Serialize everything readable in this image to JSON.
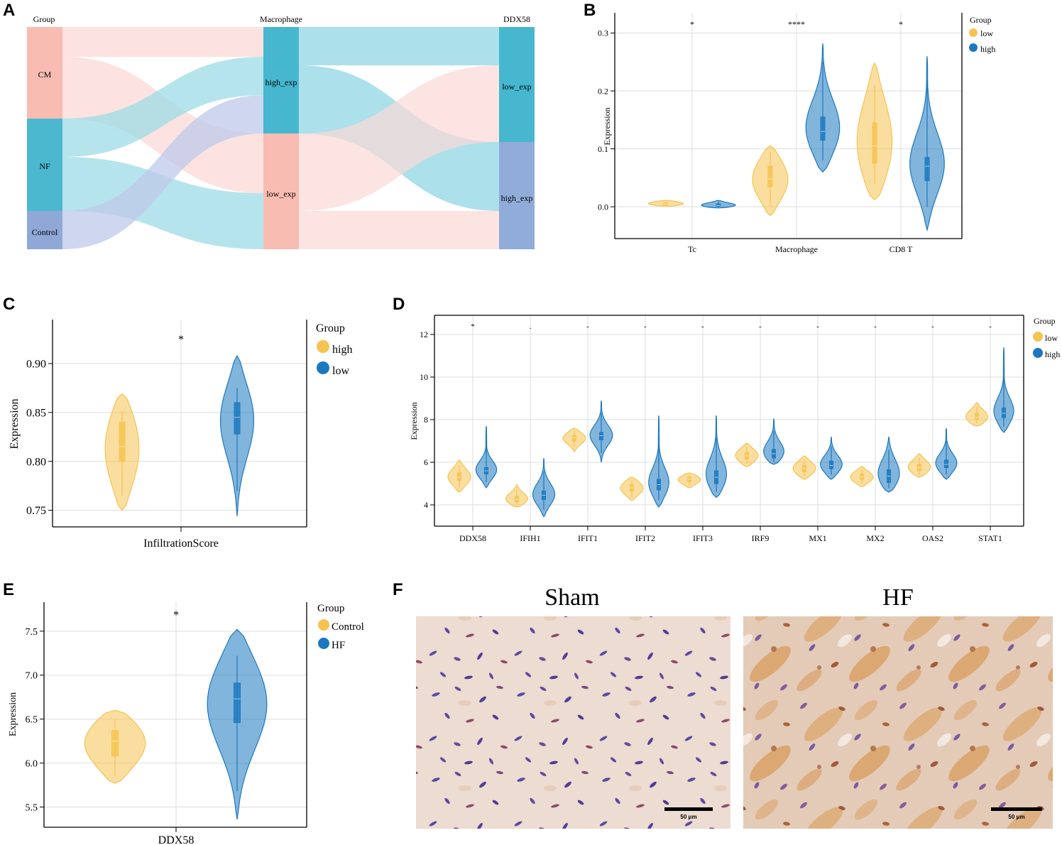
{
  "colors": {
    "low": "#f5c350",
    "high": "#1b78bf",
    "cm": "#f8bcb2",
    "nf": "#4cb8d0",
    "control": "#90a8d6",
    "link_pink": "#fbd8d5",
    "link_cyan": "#9ddbe6",
    "link_lav": "#bdc9ea"
  },
  "panels": {
    "A": {
      "label": "A",
      "headers": [
        "Group",
        "Macrophage",
        "DDX58"
      ],
      "group_nodes": [
        "CM",
        "NF",
        "Control"
      ],
      "macrophage_nodes": [
        "high_exp",
        "low_exp"
      ],
      "ddx58_nodes": [
        "low_exp",
        "high_exp"
      ],
      "flows_group_to_macrophage": [
        {
          "from": "CM",
          "to": "high_exp",
          "value": 17
        },
        {
          "from": "CM",
          "to": "low_exp",
          "value": 25
        },
        {
          "from": "NF",
          "to": "high_exp",
          "value": 16
        },
        {
          "from": "NF",
          "to": "low_exp",
          "value": 25
        },
        {
          "from": "Control",
          "to": "high_exp",
          "value": 16
        },
        {
          "from": "Control",
          "to": "low_exp",
          "value": 0
        }
      ],
      "flows_macrophage_to_ddx58": [
        {
          "from": "high_exp",
          "to": "low_exp",
          "value": 17
        },
        {
          "from": "high_exp",
          "to": "high_exp",
          "value": 32
        },
        {
          "from": "low_exp",
          "to": "low_exp",
          "value": 34
        },
        {
          "from": "low_exp",
          "to": "high_exp",
          "value": 17
        }
      ]
    },
    "B": {
      "label": "B",
      "type": "violin",
      "ylabel": "Expression",
      "ylim": [
        -0.055,
        0.335
      ],
      "yticks": [
        0.0,
        0.1,
        0.2,
        0.3
      ],
      "ytick_labels": [
        "0.0",
        "0.1",
        "0.2",
        "0.3"
      ],
      "categories": [
        "Tc",
        "Macrophage",
        "CD8 T"
      ],
      "significance": [
        "*",
        "****",
        "*"
      ],
      "legend_title": "Group",
      "series": [
        {
          "name": "low",
          "color": "low",
          "values": [
            {
              "min": 0.001,
              "max": 0.011,
              "q1": 0.003,
              "med": 0.005,
              "q3": 0.007,
              "wlo": 0.002,
              "whi": 0.009
            },
            {
              "min": -0.015,
              "max": 0.105,
              "q1": 0.035,
              "med": 0.048,
              "q3": 0.07,
              "wlo": 0.0,
              "whi": 0.095
            },
            {
              "min": 0.012,
              "max": 0.248,
              "q1": 0.075,
              "med": 0.105,
              "q3": 0.145,
              "wlo": 0.04,
              "whi": 0.21
            }
          ]
        },
        {
          "name": "high",
          "color": "high",
          "values": [
            {
              "min": -0.002,
              "max": 0.011,
              "q1": 0.001,
              "med": 0.002,
              "q3": 0.005,
              "wlo": -0.001,
              "whi": 0.009
            },
            {
              "min": 0.06,
              "max": 0.282,
              "q1": 0.115,
              "med": 0.13,
              "q3": 0.155,
              "wlo": 0.08,
              "whi": 0.25
            },
            {
              "min": -0.04,
              "max": 0.26,
              "q1": 0.045,
              "med": 0.07,
              "q3": 0.085,
              "wlo": 0.0,
              "whi": 0.22
            }
          ]
        }
      ]
    },
    "C": {
      "label": "C",
      "type": "violin",
      "ylabel": "Expression",
      "xlabel": "InfiltrationScore",
      "ylim": [
        0.733,
        0.945
      ],
      "yticks": [
        0.75,
        0.8,
        0.85,
        0.9
      ],
      "ytick_labels": [
        "0.75",
        "0.80",
        "0.85",
        "0.90"
      ],
      "significance": "*",
      "legend_title": "Group",
      "series": [
        {
          "name": "high",
          "color": "low",
          "stats": {
            "min": 0.75,
            "max": 0.869,
            "q1": 0.8,
            "med": 0.815,
            "q3": 0.84,
            "wlo": 0.765,
            "whi": 0.852
          }
        },
        {
          "name": "low",
          "color": "high",
          "stats": {
            "min": 0.744,
            "max": 0.908,
            "q1": 0.828,
            "med": 0.845,
            "q3": 0.86,
            "wlo": 0.77,
            "whi": 0.875
          }
        }
      ]
    },
    "D": {
      "label": "D",
      "type": "violin",
      "ylabel": "Expression",
      "ylim": [
        3.0,
        12.9
      ],
      "yticks": [
        4,
        6,
        8,
        10,
        12
      ],
      "ytick_labels": [
        "4",
        "6",
        "8",
        "10",
        "12"
      ],
      "categories": [
        "DDX58",
        "IFIH1",
        "IFIT1",
        "IFIT2",
        "IFIT3",
        "IRF9",
        "MX1",
        "MX2",
        "OAS2",
        "STAT1"
      ],
      "significance": [
        "*",
        ".",
        "-",
        "-",
        "-",
        "-",
        "-",
        "-",
        "-",
        "-"
      ],
      "legend_title": "Group",
      "series": [
        {
          "name": "low",
          "color": "low",
          "values": [
            {
              "min": 4.6,
              "max": 6.1,
              "med": 5.3,
              "q1": 5.15,
              "q3": 5.5
            },
            {
              "min": 3.9,
              "max": 4.95,
              "med": 4.25,
              "q1": 4.15,
              "q3": 4.4
            },
            {
              "min": 6.5,
              "max": 7.6,
              "med": 7.15,
              "q1": 7.0,
              "q3": 7.25
            },
            {
              "min": 4.2,
              "max": 5.3,
              "med": 4.8,
              "q1": 4.65,
              "q3": 4.95
            },
            {
              "min": 4.8,
              "max": 5.5,
              "med": 5.2,
              "q1": 5.1,
              "q3": 5.3
            },
            {
              "min": 5.8,
              "max": 6.9,
              "med": 6.3,
              "q1": 6.15,
              "q3": 6.45
            },
            {
              "min": 5.2,
              "max": 6.3,
              "med": 5.7,
              "q1": 5.55,
              "q3": 5.85
            },
            {
              "min": 4.85,
              "max": 5.8,
              "med": 5.3,
              "q1": 5.2,
              "q3": 5.45
            },
            {
              "min": 5.3,
              "max": 6.4,
              "med": 5.75,
              "q1": 5.6,
              "q3": 5.9
            },
            {
              "min": 7.7,
              "max": 8.8,
              "med": 8.1,
              "q1": 8.0,
              "q3": 8.3
            }
          ]
        },
        {
          "name": "high",
          "color": "high",
          "values": [
            {
              "min": 4.8,
              "max": 7.7,
              "med": 5.6,
              "q1": 5.45,
              "q3": 5.75
            },
            {
              "min": 3.45,
              "max": 6.2,
              "med": 4.45,
              "q1": 4.25,
              "q3": 4.65
            },
            {
              "min": 6.0,
              "max": 8.9,
              "med": 7.25,
              "q1": 7.05,
              "q3": 7.4
            },
            {
              "min": 3.9,
              "max": 8.2,
              "med": 4.95,
              "q1": 4.7,
              "q3": 5.2
            },
            {
              "min": 4.35,
              "max": 8.2,
              "med": 5.3,
              "q1": 5.0,
              "q3": 5.6
            },
            {
              "min": 5.9,
              "max": 8.05,
              "med": 6.4,
              "q1": 6.2,
              "q3": 6.6
            },
            {
              "min": 5.2,
              "max": 7.2,
              "med": 5.85,
              "q1": 5.7,
              "q3": 6.05
            },
            {
              "min": 4.6,
              "max": 7.2,
              "med": 5.35,
              "q1": 5.05,
              "q3": 5.65
            },
            {
              "min": 5.2,
              "max": 7.6,
              "med": 5.9,
              "q1": 5.75,
              "q3": 6.1
            },
            {
              "min": 7.4,
              "max": 11.4,
              "med": 8.3,
              "q1": 8.1,
              "q3": 8.55
            }
          ]
        }
      ]
    },
    "E": {
      "label": "E",
      "type": "violin",
      "ylabel": "Expression",
      "xlabel": "DDX58",
      "ylim": [
        5.27,
        7.83
      ],
      "yticks": [
        5.5,
        6.0,
        6.5,
        7.0,
        7.5
      ],
      "ytick_labels": [
        "5.5",
        "6.0",
        "6.5",
        "7.0",
        "7.5"
      ],
      "significance": "*",
      "legend_title": "Group",
      "series": [
        {
          "name": "Control",
          "color": "low",
          "stats": {
            "min": 5.77,
            "max": 6.6,
            "q1": 6.08,
            "med": 6.25,
            "q3": 6.37,
            "wlo": 5.85,
            "whi": 6.5
          }
        },
        {
          "name": "HF",
          "color": "high",
          "stats": {
            "min": 5.36,
            "max": 7.52,
            "q1": 6.46,
            "med": 6.73,
            "q3": 6.91,
            "wlo": 5.68,
            "whi": 7.22
          }
        }
      ]
    },
    "F": {
      "label": "F",
      "images": [
        {
          "title": "Sham",
          "scale": "50 μm"
        },
        {
          "title": "HF",
          "scale": "50 μm"
        }
      ]
    }
  }
}
